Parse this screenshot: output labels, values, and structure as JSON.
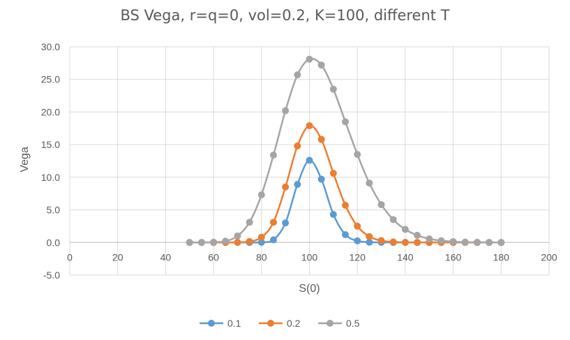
{
  "chart_data": {
    "type": "line",
    "title": "BS Vega, r=q=0, vol=0.2, K=100, different T",
    "xlabel": "S(0)",
    "ylabel": "Vega",
    "xlim": [
      0,
      200
    ],
    "ylim": [
      -5,
      30
    ],
    "x_ticks": [
      0,
      20,
      40,
      60,
      80,
      100,
      120,
      140,
      160,
      180,
      200
    ],
    "y_ticks": [
      -5,
      0,
      5,
      10,
      15,
      20,
      25,
      30
    ],
    "x_tick_labels": [
      "0",
      "20",
      "40",
      "60",
      "80",
      "100",
      "120",
      "140",
      "160",
      "180",
      "200"
    ],
    "y_tick_labels": [
      "-5.0",
      "0.0",
      "5.0",
      "10.0",
      "15.0",
      "20.0",
      "25.0",
      "30.0"
    ],
    "grid": true,
    "legend_position": "bottom",
    "x": [
      50,
      55,
      60,
      65,
      70,
      75,
      80,
      85,
      90,
      95,
      100,
      105,
      110,
      115,
      120,
      125,
      130,
      135,
      140,
      145,
      150,
      155,
      160,
      165,
      170,
      175,
      180
    ],
    "series": [
      {
        "name": "0.1",
        "color": "#5B9BD5",
        "values": [
          0,
          0,
          0,
          0,
          0,
          0,
          0.02,
          0.4,
          3.0,
          8.9,
          12.6,
          9.7,
          4.3,
          1.2,
          0.25,
          0.04,
          0.01,
          0,
          0,
          0,
          0,
          0,
          0,
          0,
          0,
          0,
          0
        ]
      },
      {
        "name": "0.2",
        "color": "#ED7D31",
        "values": [
          0,
          0,
          0,
          0,
          0.02,
          0.15,
          0.8,
          3.1,
          8.5,
          14.8,
          17.9,
          15.8,
          10.6,
          5.7,
          2.5,
          0.9,
          0.28,
          0.08,
          0.02,
          0,
          0,
          0,
          0,
          0,
          0,
          0,
          0
        ]
      },
      {
        "name": "0.5",
        "color": "#A5A5A5",
        "values": [
          0,
          0,
          0.05,
          0.2,
          1.0,
          3.1,
          7.3,
          13.4,
          20.2,
          25.7,
          28.1,
          27.2,
          23.5,
          18.5,
          13.5,
          9.1,
          5.8,
          3.5,
          2.0,
          1.1,
          0.55,
          0.27,
          0.13,
          0.06,
          0.03,
          0.01,
          0
        ]
      }
    ]
  }
}
